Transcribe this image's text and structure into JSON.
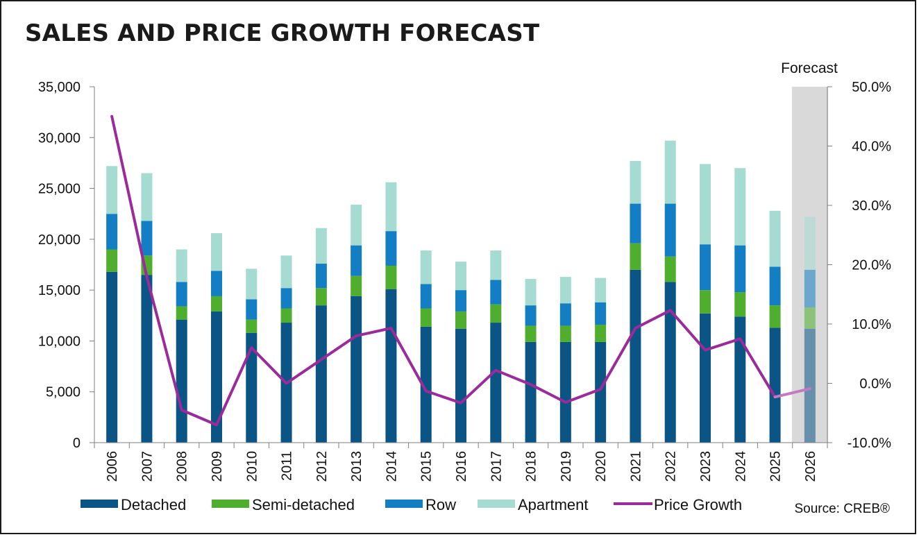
{
  "title": "SALES AND PRICE GROWTH FORECAST",
  "source": "Source: CREB®",
  "forecast_label": "Forecast",
  "chart_data": {
    "type": "bar",
    "stacked": true,
    "categories": [
      "2006",
      "2007",
      "2008",
      "2009",
      "2010",
      "2011",
      "2012",
      "2013",
      "2014",
      "2015",
      "2016",
      "2017",
      "2018",
      "2019",
      "2020",
      "2021",
      "2022",
      "2023",
      "2024",
      "2025",
      "2026"
    ],
    "forecast_categories": [
      "2026"
    ],
    "y_left": {
      "ylim": [
        0,
        35000
      ],
      "ticks": [
        "0",
        "5,000",
        "10,000",
        "15,000",
        "20,000",
        "25,000",
        "30,000",
        "35,000"
      ],
      "tick_values": [
        0,
        5000,
        10000,
        15000,
        20000,
        25000,
        30000,
        35000
      ]
    },
    "y_right": {
      "ylim": [
        -10,
        50
      ],
      "ticks": [
        "-10.0%",
        "0.0%",
        "10.0%",
        "20.0%",
        "30.0%",
        "40.0%",
        "50.0%"
      ],
      "tick_values": [
        -10,
        0,
        10,
        20,
        30,
        40,
        50
      ]
    },
    "series": [
      {
        "name": "Detached",
        "color": "#0b5486",
        "values": [
          16800,
          16500,
          12100,
          12900,
          10800,
          11800,
          13500,
          14400,
          15100,
          11400,
          11200,
          11800,
          9900,
          9900,
          9900,
          17000,
          15800,
          12700,
          12400,
          11300,
          11200
        ]
      },
      {
        "name": "Semi-detached",
        "color": "#4fae2e",
        "values": [
          2200,
          1900,
          1300,
          1500,
          1300,
          1400,
          1700,
          2000,
          2300,
          1800,
          1700,
          1800,
          1600,
          1600,
          1700,
          2600,
          2500,
          2300,
          2400,
          2200,
          2100
        ]
      },
      {
        "name": "Row",
        "color": "#137ec3",
        "values": [
          3500,
          3400,
          2400,
          2500,
          2000,
          2000,
          2400,
          3000,
          3400,
          2400,
          2100,
          2400,
          2000,
          2200,
          2200,
          3900,
          5200,
          4500,
          4600,
          3800,
          3700
        ]
      },
      {
        "name": "Apartment",
        "color": "#a6dbd2",
        "values": [
          4700,
          4700,
          3200,
          3700,
          3000,
          3200,
          3500,
          4000,
          4800,
          3300,
          2800,
          2900,
          2600,
          2600,
          2400,
          4200,
          6200,
          7900,
          7600,
          5500,
          5200
        ]
      },
      {
        "name": "Price Growth",
        "type": "line",
        "axis": "right",
        "color": "#9b2a9b",
        "values": [
          45.0,
          18.0,
          -4.5,
          -7.0,
          6.0,
          0.0,
          4.0,
          8.0,
          9.3,
          -1.3,
          -3.3,
          2.2,
          -0.2,
          -3.2,
          -1.0,
          9.3,
          12.3,
          5.6,
          7.5,
          -2.3,
          -0.9
        ]
      }
    ],
    "legend": [
      "Detached",
      "Semi-detached",
      "Row",
      "Apartment",
      "Price Growth"
    ],
    "legend_position": "bottom",
    "grid": false
  }
}
